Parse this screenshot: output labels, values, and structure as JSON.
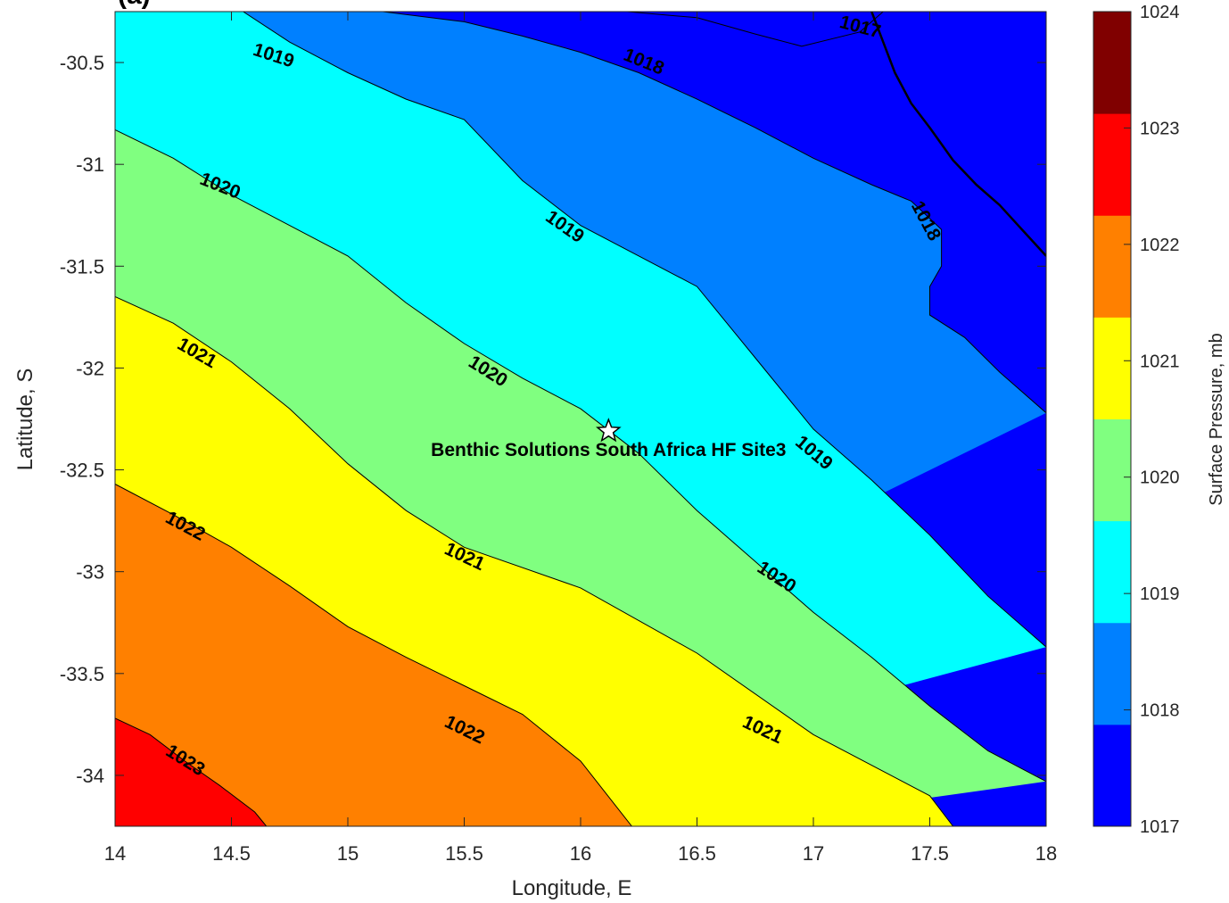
{
  "chart_data": {
    "type": "contourf",
    "title": "(a)",
    "xlabel": "Longitude, E",
    "ylabel": "Latitude, S",
    "xlim": [
      14,
      18
    ],
    "ylim": [
      -34.25,
      -30.25
    ],
    "xticks": [
      "14",
      "14.5",
      "15",
      "15.5",
      "16",
      "16.5",
      "17",
      "17.5",
      "18"
    ],
    "yticks": [
      "-30.5",
      "-31",
      "-31.5",
      "-32",
      "-32.5",
      "-33",
      "-33.5",
      "-34"
    ],
    "colorbar": {
      "label": "Surface Pressure, mb",
      "ticks": [
        "1017",
        "1018",
        "1019",
        "1020",
        "1021",
        "1022",
        "1023",
        "1024"
      ],
      "levels": [
        {
          "min": 1017,
          "max": 1018,
          "color": "#0000ff"
        },
        {
          "min": 1018,
          "max": 1019,
          "color": "#0080ff"
        },
        {
          "min": 1019,
          "max": 1020,
          "color": "#00ffff"
        },
        {
          "min": 1020,
          "max": 1021,
          "color": "#80ff80"
        },
        {
          "min": 1021,
          "max": 1022,
          "color": "#ffff00"
        },
        {
          "min": 1022,
          "max": 1023,
          "color": "#ff8000"
        },
        {
          "min": 1023,
          "max": 1024,
          "color": "#ff0000"
        },
        {
          "min": 1024,
          "max": 1025,
          "color": "#800000"
        }
      ]
    },
    "contours": [
      {
        "level": 1023,
        "points": [
          [
            14.0,
            -33.72
          ],
          [
            14.15,
            -33.8
          ],
          [
            14.3,
            -33.93
          ],
          [
            14.45,
            -34.05
          ],
          [
            14.6,
            -34.18
          ],
          [
            14.65,
            -34.25
          ]
        ]
      },
      {
        "level": 1022,
        "points": [
          [
            14.0,
            -32.57
          ],
          [
            14.25,
            -32.72
          ],
          [
            14.5,
            -32.88
          ],
          [
            14.75,
            -33.07
          ],
          [
            15.0,
            -33.27
          ],
          [
            15.25,
            -33.42
          ],
          [
            15.5,
            -33.56
          ],
          [
            15.75,
            -33.7
          ],
          [
            16.0,
            -33.93
          ],
          [
            16.22,
            -34.25
          ]
        ]
      },
      {
        "level": 1021,
        "points": [
          [
            14.0,
            -31.65
          ],
          [
            14.25,
            -31.78
          ],
          [
            14.5,
            -31.97
          ],
          [
            14.75,
            -32.2
          ],
          [
            15.0,
            -32.47
          ],
          [
            15.25,
            -32.7
          ],
          [
            15.5,
            -32.88
          ],
          [
            16.0,
            -33.08
          ],
          [
            16.5,
            -33.4
          ],
          [
            17.0,
            -33.8
          ],
          [
            17.5,
            -34.1
          ],
          [
            17.6,
            -34.25
          ]
        ]
      },
      {
        "level": 1020,
        "points": [
          [
            14.0,
            -30.83
          ],
          [
            14.25,
            -30.97
          ],
          [
            14.5,
            -31.15
          ],
          [
            14.75,
            -31.3
          ],
          [
            15.0,
            -31.45
          ],
          [
            15.25,
            -31.68
          ],
          [
            15.5,
            -31.88
          ],
          [
            15.75,
            -32.05
          ],
          [
            16.0,
            -32.2
          ],
          [
            16.25,
            -32.42
          ],
          [
            16.5,
            -32.7
          ],
          [
            16.75,
            -32.95
          ],
          [
            17.0,
            -33.2
          ],
          [
            17.25,
            -33.42
          ],
          [
            17.5,
            -33.66
          ],
          [
            17.75,
            -33.88
          ],
          [
            18.0,
            -34.03
          ]
        ]
      },
      {
        "level": 1019,
        "points": [
          [
            14.55,
            -30.25
          ],
          [
            14.75,
            -30.4
          ],
          [
            15.0,
            -30.55
          ],
          [
            15.25,
            -30.68
          ],
          [
            15.5,
            -30.78
          ],
          [
            15.75,
            -31.08
          ],
          [
            16.0,
            -31.3
          ],
          [
            16.25,
            -31.45
          ],
          [
            16.5,
            -31.6
          ],
          [
            16.75,
            -31.95
          ],
          [
            17.0,
            -32.3
          ],
          [
            17.25,
            -32.55
          ],
          [
            17.5,
            -32.82
          ],
          [
            17.75,
            -33.12
          ],
          [
            18.0,
            -33.37
          ]
        ]
      },
      {
        "level": 1018,
        "points": [
          [
            15.15,
            -30.25
          ],
          [
            15.5,
            -30.3
          ],
          [
            15.75,
            -30.37
          ],
          [
            16.0,
            -30.45
          ],
          [
            16.25,
            -30.55
          ],
          [
            16.5,
            -30.68
          ],
          [
            16.75,
            -30.82
          ],
          [
            17.0,
            -30.97
          ],
          [
            17.25,
            -31.1
          ],
          [
            17.42,
            -31.18
          ],
          [
            17.55,
            -31.32
          ],
          [
            17.55,
            -31.5
          ],
          [
            17.5,
            -31.6
          ],
          [
            17.5,
            -31.74
          ],
          [
            17.65,
            -31.85
          ],
          [
            17.8,
            -32.02
          ],
          [
            18.0,
            -32.22
          ]
        ]
      },
      {
        "level": 1017,
        "points": [
          [
            16.2,
            -30.25
          ],
          [
            16.5,
            -30.28
          ],
          [
            16.75,
            -30.36
          ],
          [
            16.95,
            -30.42
          ],
          [
            17.2,
            -30.35
          ],
          [
            17.3,
            -30.25
          ]
        ]
      }
    ],
    "contour_labels": [
      {
        "text": "1019",
        "lon": 14.68,
        "lat": -30.47,
        "angle": 18
      },
      {
        "text": "1018",
        "lon": 16.27,
        "lat": -30.5,
        "angle": 22
      },
      {
        "text": "1017",
        "lon": 17.2,
        "lat": -30.33,
        "angle": 15
      },
      {
        "text": "1020",
        "lon": 14.45,
        "lat": -31.11,
        "angle": 22
      },
      {
        "text": "1019",
        "lon": 15.93,
        "lat": -31.31,
        "angle": 35
      },
      {
        "text": "1018",
        "lon": 17.48,
        "lat": -31.28,
        "angle": 62
      },
      {
        "text": "1021",
        "lon": 14.35,
        "lat": -31.93,
        "angle": 30
      },
      {
        "text": "1020",
        "lon": 15.6,
        "lat": -32.02,
        "angle": 32
      },
      {
        "text": "1019",
        "lon": 17.0,
        "lat": -32.42,
        "angle": 40
      },
      {
        "text": "1022",
        "lon": 14.3,
        "lat": -32.78,
        "angle": 28
      },
      {
        "text": "1021",
        "lon": 15.5,
        "lat": -32.93,
        "angle": 25
      },
      {
        "text": "1020",
        "lon": 16.84,
        "lat": -33.03,
        "angle": 33
      },
      {
        "text": "1023",
        "lon": 14.3,
        "lat": -33.93,
        "angle": 32
      },
      {
        "text": "1022",
        "lon": 15.5,
        "lat": -33.78,
        "angle": 26
      },
      {
        "text": "1021",
        "lon": 16.78,
        "lat": -33.78,
        "angle": 25
      }
    ],
    "site": {
      "name": "Benthic Solutions South Africa HF Site3",
      "lon": 16.12,
      "lat": -32.31
    },
    "coastline": [
      [
        17.25,
        -30.25
      ],
      [
        17.3,
        -30.4
      ],
      [
        17.35,
        -30.55
      ],
      [
        17.42,
        -30.7
      ],
      [
        17.5,
        -30.82
      ],
      [
        17.6,
        -30.98
      ],
      [
        17.7,
        -31.1
      ],
      [
        17.8,
        -31.2
      ],
      [
        17.88,
        -31.3
      ],
      [
        17.96,
        -31.4
      ],
      [
        18.0,
        -31.45
      ]
    ],
    "grid": false,
    "legend": "none"
  }
}
